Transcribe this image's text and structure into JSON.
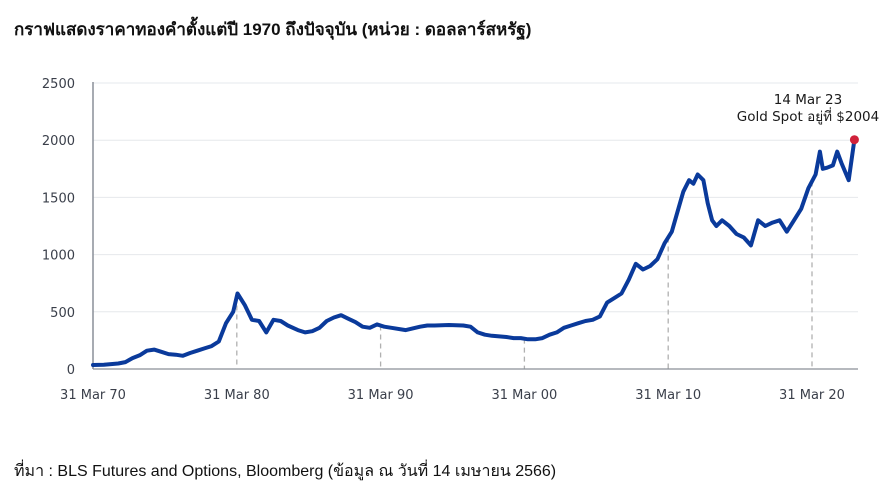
{
  "title": "กราฟแสดงราคาทองคำตั้งแต่ปี 1970 ถึงปัจจุบัน (หน่วย : ดอลลาร์สหรัฐ)",
  "source": "ที่มา : BLS Futures and Options, Bloomberg (ข้อมูล ณ วันที่ 14 เมษายน 2566)",
  "colors": {
    "line": "#0a3a9b",
    "marker": "#d0213a",
    "grid": "#e6e8ec",
    "axis": "#8a8f98",
    "dashed": "#b0b0b0"
  },
  "annotation": {
    "line1": "14 Mar 23",
    "line2": "Gold Spot อยู่ที่ $2004"
  },
  "chart_data": {
    "type": "line",
    "title": "กราฟแสดงราคาทองคำตั้งแต่ปี 1970 ถึงปัจจุบัน (หน่วย : ดอลลาร์สหรัฐ)",
    "xlabel": "",
    "ylabel": "",
    "ylim": [
      0,
      2500
    ],
    "yticks": [
      0,
      500,
      1000,
      1500,
      2000,
      2500
    ],
    "xtick_labels": [
      "31 Mar 70",
      "31 Mar 80",
      "31 Mar 90",
      "31 Mar 00",
      "31 Mar 10",
      "31 Mar 20"
    ],
    "xtick_years": [
      1970.25,
      1980.25,
      1990.25,
      2000.25,
      2010.25,
      2020.25
    ],
    "grid": true,
    "legend": null,
    "annotation": {
      "x": 2023.2,
      "y": 2004,
      "text": [
        "14 Mar 23",
        "Gold Spot อยู่ที่ $2004"
      ]
    },
    "series": [
      {
        "name": "Gold Spot (USD)",
        "x": [
          1970.25,
          1971,
          1972,
          1972.5,
          1973,
          1973.5,
          1974,
          1974.5,
          1975,
          1975.5,
          1976,
          1976.5,
          1977,
          1977.5,
          1978,
          1978.5,
          1979,
          1979.5,
          1980,
          1980.3,
          1980.8,
          1981.3,
          1981.8,
          1982.3,
          1982.8,
          1983.3,
          1983.8,
          1984.5,
          1985,
          1985.5,
          1986,
          1986.5,
          1987,
          1987.5,
          1988,
          1988.5,
          1989,
          1989.5,
          1990,
          1990.5,
          1991,
          1992,
          1993,
          1993.5,
          1994,
          1995,
          1996,
          1996.5,
          1997,
          1997.5,
          1998,
          1999,
          1999.5,
          2000,
          2000.5,
          2001,
          2001.5,
          2002,
          2002.5,
          2003,
          2003.5,
          2004,
          2004.5,
          2005,
          2005.5,
          2006,
          2006.5,
          2007,
          2007.5,
          2008,
          2008.5,
          2009,
          2009.5,
          2010,
          2010.5,
          2011,
          2011.3,
          2011.7,
          2012,
          2012.3,
          2012.7,
          2013,
          2013.3,
          2013.6,
          2014,
          2014.5,
          2015,
          2015.5,
          2016,
          2016.5,
          2017,
          2017.5,
          2018,
          2018.5,
          2019,
          2019.5,
          2020,
          2020.5,
          2020.8,
          2021,
          2021.3,
          2021.7,
          2022,
          2022.3,
          2022.8,
          2023.2
        ],
        "values": [
          35,
          38,
          48,
          60,
          95,
          120,
          160,
          170,
          150,
          130,
          125,
          115,
          140,
          160,
          180,
          200,
          240,
          400,
          500,
          660,
          560,
          430,
          420,
          320,
          430,
          420,
          380,
          340,
          320,
          330,
          360,
          420,
          450,
          470,
          440,
          410,
          370,
          360,
          390,
          370,
          360,
          340,
          370,
          380,
          380,
          385,
          380,
          370,
          320,
          300,
          290,
          280,
          270,
          270,
          260,
          260,
          270,
          300,
          320,
          360,
          380,
          400,
          420,
          430,
          460,
          580,
          620,
          660,
          780,
          920,
          870,
          900,
          960,
          1100,
          1200,
          1420,
          1550,
          1650,
          1620,
          1700,
          1650,
          1450,
          1300,
          1250,
          1300,
          1250,
          1180,
          1150,
          1080,
          1300,
          1250,
          1280,
          1300,
          1200,
          1300,
          1400,
          1580,
          1700,
          1900,
          1750,
          1760,
          1780,
          1900,
          1800,
          1650,
          2004
        ]
      }
    ]
  }
}
